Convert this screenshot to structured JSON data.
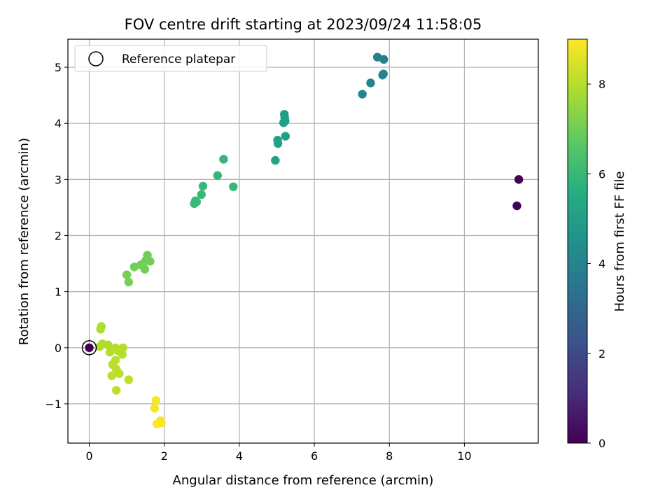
{
  "chart_data": {
    "type": "scatter",
    "title": "FOV centre drift starting at 2023/09/24 11:58:05",
    "xlabel": "Angular distance from reference (arcmin)",
    "ylabel": "Rotation from reference (arcmin)",
    "xlim": [
      -0.57,
      11.97
    ],
    "ylim": [
      -1.7,
      5.5
    ],
    "x_ticks": [
      0,
      2,
      4,
      6,
      8,
      10
    ],
    "x_tick_labels": [
      "0",
      "2",
      "4",
      "6",
      "8",
      "10"
    ],
    "y_ticks": [
      -1,
      0,
      1,
      2,
      3,
      4,
      5
    ],
    "y_tick_labels": [
      "−1",
      "0",
      "1",
      "2",
      "3",
      "4",
      "5"
    ],
    "grid": true,
    "legend": {
      "placement": "top-left",
      "entries": [
        "Reference platepar"
      ]
    },
    "reference_point": {
      "x": 0,
      "y": 0
    },
    "colorbar": {
      "label": "Hours from first FF file",
      "colormap": "viridis",
      "range": [
        0,
        9
      ],
      "ticks": [
        0,
        2,
        4,
        6,
        8
      ],
      "tick_labels": [
        "0",
        "2",
        "4",
        "6",
        "8"
      ]
    },
    "points": [
      {
        "x": 11.45,
        "y": 3.0,
        "c": 0.0
      },
      {
        "x": 11.4,
        "y": 2.53,
        "c": 0.05
      },
      {
        "x": 7.68,
        "y": 5.18,
        "c": 3.85
      },
      {
        "x": 7.85,
        "y": 5.14,
        "c": 3.9
      },
      {
        "x": 7.5,
        "y": 4.72,
        "c": 4.0
      },
      {
        "x": 7.82,
        "y": 4.86,
        "c": 4.0
      },
      {
        "x": 7.84,
        "y": 4.88,
        "c": 4.05
      },
      {
        "x": 7.28,
        "y": 4.52,
        "c": 4.1
      },
      {
        "x": 5.2,
        "y": 4.16,
        "c": 5.0
      },
      {
        "x": 5.21,
        "y": 4.1,
        "c": 5.0
      },
      {
        "x": 5.18,
        "y": 4.01,
        "c": 5.05
      },
      {
        "x": 5.22,
        "y": 4.04,
        "c": 5.05
      },
      {
        "x": 5.23,
        "y": 3.77,
        "c": 5.1
      },
      {
        "x": 5.02,
        "y": 3.7,
        "c": 5.1
      },
      {
        "x": 5.03,
        "y": 3.64,
        "c": 5.15
      },
      {
        "x": 4.96,
        "y": 3.34,
        "c": 5.2
      },
      {
        "x": 3.58,
        "y": 3.36,
        "c": 6.0
      },
      {
        "x": 3.42,
        "y": 3.07,
        "c": 6.0
      },
      {
        "x": 3.03,
        "y": 2.88,
        "c": 6.05
      },
      {
        "x": 3.84,
        "y": 2.87,
        "c": 6.05
      },
      {
        "x": 2.99,
        "y": 2.73,
        "c": 6.05
      },
      {
        "x": 2.83,
        "y": 2.62,
        "c": 6.1
      },
      {
        "x": 2.8,
        "y": 2.57,
        "c": 6.1
      },
      {
        "x": 2.86,
        "y": 2.6,
        "c": 6.1
      },
      {
        "x": 1.55,
        "y": 1.65,
        "c": 7.0
      },
      {
        "x": 1.5,
        "y": 1.55,
        "c": 7.0
      },
      {
        "x": 1.62,
        "y": 1.54,
        "c": 7.0
      },
      {
        "x": 1.38,
        "y": 1.48,
        "c": 7.05
      },
      {
        "x": 1.48,
        "y": 1.4,
        "c": 7.05
      },
      {
        "x": 1.2,
        "y": 1.44,
        "c": 7.05
      },
      {
        "x": 1.0,
        "y": 1.3,
        "c": 7.1
      },
      {
        "x": 1.05,
        "y": 1.17,
        "c": 7.1
      },
      {
        "x": 0.32,
        "y": 0.38,
        "c": 7.9
      },
      {
        "x": 0.3,
        "y": 0.33,
        "c": 7.9
      },
      {
        "x": 0.35,
        "y": 0.07,
        "c": 7.95
      },
      {
        "x": 0.28,
        "y": 0.02,
        "c": 7.95
      },
      {
        "x": 0.5,
        "y": 0.05,
        "c": 7.95
      },
      {
        "x": 0.7,
        "y": 0.0,
        "c": 8.0
      },
      {
        "x": 0.9,
        "y": 0.0,
        "c": 8.0
      },
      {
        "x": 0.55,
        "y": -0.08,
        "c": 8.0
      },
      {
        "x": 0.75,
        "y": -0.05,
        "c": 8.0
      },
      {
        "x": 0.88,
        "y": -0.12,
        "c": 8.0
      },
      {
        "x": 0.7,
        "y": -0.22,
        "c": 8.05
      },
      {
        "x": 0.62,
        "y": -0.3,
        "c": 8.05
      },
      {
        "x": 0.72,
        "y": -0.38,
        "c": 8.05
      },
      {
        "x": 0.8,
        "y": -0.46,
        "c": 8.05
      },
      {
        "x": 0.6,
        "y": -0.5,
        "c": 8.05
      },
      {
        "x": 1.05,
        "y": -0.57,
        "c": 8.1
      },
      {
        "x": 0.72,
        "y": -0.76,
        "c": 8.1
      },
      {
        "x": 1.78,
        "y": -0.94,
        "c": 8.9
      },
      {
        "x": 1.74,
        "y": -1.08,
        "c": 8.9
      },
      {
        "x": 1.9,
        "y": -1.3,
        "c": 8.95
      },
      {
        "x": 1.92,
        "y": -1.34,
        "c": 8.95
      },
      {
        "x": 1.8,
        "y": -1.36,
        "c": 9.0
      },
      {
        "x": 0.0,
        "y": 0.0,
        "c": 0.0
      }
    ]
  }
}
